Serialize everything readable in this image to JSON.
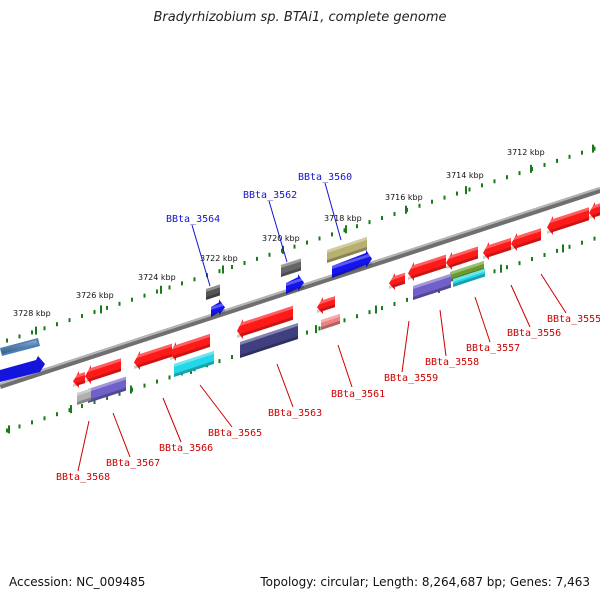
{
  "title": "Bradyrhizobium sp. BTAi1, complete genome",
  "footer": {
    "accession": "Accession: NC_009485",
    "topology": "Topology: circular; Length: 8,264,687 bp; Genes: 7,463"
  },
  "scale_labels": [
    "3712 kbp",
    "3714 kbp",
    "3716 kbp",
    "3718 kbp",
    "3720 kbp",
    "3722 kbp",
    "3724 kbp",
    "3726 kbp",
    "3728 kbp"
  ],
  "colors": {
    "forward_gene": "#ff2020",
    "reverse_gene": "#1414cc",
    "backbone": "#8a8a8a",
    "scale_dots": "#1a7a1a",
    "label_top": "#1414cc",
    "label_bottom": "#cc0000"
  },
  "genes": [
    {
      "id": "BBta_3560",
      "strand": "top",
      "color": "#b8b070"
    },
    {
      "id": "BBta_3562",
      "strand": "top",
      "color": "#666666"
    },
    {
      "id": "BBta_3564",
      "strand": "top",
      "color": "#555555"
    },
    {
      "id": "BBta_3555",
      "strand": "bottom",
      "color": "#ff2020"
    },
    {
      "id": "BBta_3556",
      "strand": "bottom",
      "color": "#ff2020"
    },
    {
      "id": "BBta_3557",
      "strand": "bottom",
      "color": "#ff2020"
    },
    {
      "id": "BBta_3558",
      "strand": "bottom",
      "color": "#7060c8"
    },
    {
      "id": "BBta_3559",
      "strand": "bottom",
      "color": "#ff2020"
    },
    {
      "id": "BBta_3561",
      "strand": "bottom",
      "color": "#ff2020"
    },
    {
      "id": "BBta_3563",
      "strand": "bottom",
      "color": "#404080"
    },
    {
      "id": "BBta_3565",
      "strand": "bottom",
      "color": "#20d8e8"
    },
    {
      "id": "BBta_3566",
      "strand": "bottom",
      "color": "#ff2020"
    },
    {
      "id": "BBta_3567",
      "strand": "bottom",
      "color": "#7060c8"
    },
    {
      "id": "BBta_3568",
      "strand": "bottom",
      "color": "#ff2020"
    }
  ]
}
